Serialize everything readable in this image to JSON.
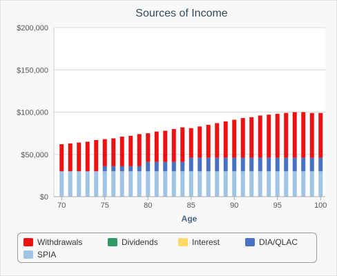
{
  "chart_data": {
    "type": "bar",
    "stacked": true,
    "title": "Sources of Income",
    "xlabel": "Age",
    "ylabel": "",
    "ylim": [
      0,
      200000
    ],
    "yticks": [
      "$0",
      "$50,000",
      "$100,000",
      "$150,000",
      "$200,000"
    ],
    "ytick_values": [
      0,
      50000,
      100000,
      150000,
      200000
    ],
    "xticks": [
      "70",
      "75",
      "80",
      "85",
      "90",
      "95",
      "100"
    ],
    "xtick_values": [
      70,
      75,
      80,
      85,
      90,
      95,
      100
    ],
    "x": [
      70,
      71,
      72,
      73,
      74,
      75,
      76,
      77,
      78,
      79,
      80,
      81,
      82,
      83,
      84,
      85,
      86,
      87,
      88,
      89,
      90,
      91,
      92,
      93,
      94,
      95,
      96,
      97,
      98,
      99,
      100
    ],
    "grid": true,
    "legend_position": "bottom",
    "series": [
      {
        "name": "SPIA",
        "color": "#9fc4e6",
        "values": [
          30000,
          30000,
          30000,
          30000,
          30000,
          30000,
          30000,
          30000,
          30000,
          30000,
          30000,
          30000,
          30000,
          30000,
          30000,
          30000,
          30000,
          30000,
          30000,
          30000,
          30000,
          30000,
          30000,
          30000,
          30000,
          30000,
          30000,
          30000,
          30000,
          30000,
          30000
        ]
      },
      {
        "name": "DIA/QLAC",
        "color": "#4a72c4",
        "values": [
          0,
          0,
          0,
          0,
          0,
          6000,
          6000,
          6000,
          6000,
          6000,
          11000,
          11000,
          11000,
          11000,
          11000,
          16000,
          16000,
          16000,
          16000,
          16000,
          16000,
          16000,
          16000,
          16000,
          16000,
          16000,
          16000,
          16000,
          16000,
          16000,
          16000
        ]
      },
      {
        "name": "Interest",
        "color": "#ffd966",
        "values": [
          0,
          0,
          0,
          0,
          0,
          0,
          0,
          0,
          0,
          0,
          0,
          0,
          0,
          0,
          0,
          0,
          0,
          0,
          0,
          0,
          0,
          0,
          0,
          0,
          0,
          0,
          0,
          0,
          0,
          0,
          0
        ]
      },
      {
        "name": "Dividends",
        "color": "#2e9a66",
        "values": [
          0,
          0,
          0,
          0,
          0,
          0,
          0,
          0,
          0,
          0,
          0,
          0,
          0,
          0,
          0,
          0,
          0,
          0,
          0,
          0,
          0,
          0,
          0,
          0,
          0,
          0,
          0,
          0,
          0,
          0,
          0
        ]
      },
      {
        "name": "Withdrawals",
        "color": "#ee1111",
        "values": [
          32000,
          33000,
          34000,
          35000,
          37000,
          32000,
          33000,
          35000,
          36000,
          38000,
          34000,
          36000,
          37000,
          39000,
          41000,
          35000,
          37000,
          39000,
          41000,
          43000,
          45000,
          47000,
          48000,
          50000,
          51000,
          52000,
          53000,
          54000,
          54000,
          53000,
          53000
        ]
      }
    ]
  },
  "legend": {
    "items": [
      {
        "label": "Withdrawals",
        "color": "#ee1111",
        "icon": "red-swatch"
      },
      {
        "label": "Dividends",
        "color": "#2e9a66",
        "icon": "green-swatch"
      },
      {
        "label": "Interest",
        "color": "#ffd966",
        "icon": "yellow-swatch"
      },
      {
        "label": "DIA/QLAC",
        "color": "#4a72c4",
        "icon": "blue-swatch"
      },
      {
        "label": "SPIA",
        "color": "#9fc4e6",
        "icon": "light-blue-swatch"
      }
    ]
  }
}
